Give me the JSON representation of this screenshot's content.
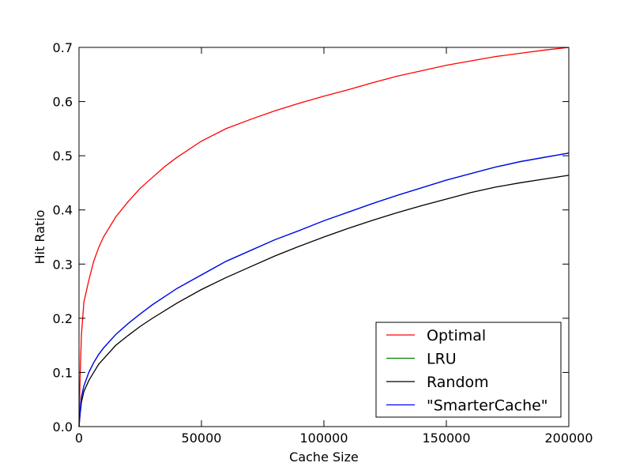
{
  "chart_data": {
    "type": "line",
    "title": "",
    "xlabel": "Cache Size",
    "ylabel": "Hit Ratio",
    "xlim": [
      0,
      200000
    ],
    "ylim": [
      0.0,
      0.7
    ],
    "xticks": [
      0,
      50000,
      100000,
      150000,
      200000
    ],
    "xtick_labels": [
      "0",
      "50000",
      "100000",
      "150000",
      "200000"
    ],
    "yticks": [
      0.0,
      0.1,
      0.2,
      0.3,
      0.4,
      0.5,
      0.6,
      0.7
    ],
    "ytick_labels": [
      "0.0",
      "0.1",
      "0.2",
      "0.3",
      "0.4",
      "0.5",
      "0.6",
      "0.7"
    ],
    "grid": false,
    "legend_position": "lower-right",
    "series": [
      {
        "name": "Optimal",
        "color": "#ff0000",
        "points": [
          [
            0,
            0.0
          ],
          [
            500,
            0.1
          ],
          [
            1000,
            0.17
          ],
          [
            2000,
            0.23
          ],
          [
            4000,
            0.27
          ],
          [
            6000,
            0.305
          ],
          [
            8000,
            0.33
          ],
          [
            10000,
            0.35
          ],
          [
            15000,
            0.387
          ],
          [
            20000,
            0.415
          ],
          [
            25000,
            0.44
          ],
          [
            30000,
            0.46
          ],
          [
            35000,
            0.48
          ],
          [
            40000,
            0.497
          ],
          [
            50000,
            0.527
          ],
          [
            60000,
            0.55
          ],
          [
            70000,
            0.567
          ],
          [
            80000,
            0.583
          ],
          [
            90000,
            0.597
          ],
          [
            100000,
            0.61
          ],
          [
            110000,
            0.622
          ],
          [
            120000,
            0.635
          ],
          [
            130000,
            0.647
          ],
          [
            140000,
            0.657
          ],
          [
            150000,
            0.667
          ],
          [
            160000,
            0.675
          ],
          [
            170000,
            0.683
          ],
          [
            180000,
            0.689
          ],
          [
            190000,
            0.695
          ],
          [
            200000,
            0.7
          ]
        ]
      },
      {
        "name": "LRU",
        "color": "#008000",
        "points": [
          [
            0,
            0.0
          ],
          [
            500,
            0.03
          ],
          [
            1000,
            0.055
          ],
          [
            2000,
            0.075
          ],
          [
            4000,
            0.1
          ],
          [
            6000,
            0.118
          ],
          [
            8000,
            0.133
          ],
          [
            10000,
            0.145
          ],
          [
            15000,
            0.17
          ],
          [
            20000,
            0.19
          ],
          [
            25000,
            0.208
          ],
          [
            30000,
            0.225
          ],
          [
            40000,
            0.255
          ],
          [
            50000,
            0.28
          ],
          [
            60000,
            0.305
          ],
          [
            70000,
            0.325
          ],
          [
            80000,
            0.345
          ],
          [
            90000,
            0.362
          ],
          [
            100000,
            0.38
          ],
          [
            110000,
            0.396
          ],
          [
            120000,
            0.412
          ],
          [
            130000,
            0.427
          ],
          [
            140000,
            0.441
          ],
          [
            150000,
            0.455
          ],
          [
            160000,
            0.467
          ],
          [
            170000,
            0.479
          ],
          [
            180000,
            0.489
          ],
          [
            190000,
            0.497
          ],
          [
            200000,
            0.505
          ]
        ]
      },
      {
        "name": "Random",
        "color": "#000000",
        "points": [
          [
            0,
            0.0
          ],
          [
            500,
            0.025
          ],
          [
            1000,
            0.045
          ],
          [
            2000,
            0.065
          ],
          [
            4000,
            0.085
          ],
          [
            6000,
            0.1
          ],
          [
            8000,
            0.115
          ],
          [
            10000,
            0.125
          ],
          [
            15000,
            0.15
          ],
          [
            20000,
            0.168
          ],
          [
            25000,
            0.185
          ],
          [
            30000,
            0.2
          ],
          [
            40000,
            0.228
          ],
          [
            50000,
            0.253
          ],
          [
            60000,
            0.275
          ],
          [
            70000,
            0.295
          ],
          [
            80000,
            0.315
          ],
          [
            90000,
            0.333
          ],
          [
            100000,
            0.35
          ],
          [
            110000,
            0.366
          ],
          [
            120000,
            0.381
          ],
          [
            130000,
            0.395
          ],
          [
            140000,
            0.408
          ],
          [
            150000,
            0.42
          ],
          [
            160000,
            0.432
          ],
          [
            170000,
            0.442
          ],
          [
            180000,
            0.45
          ],
          [
            190000,
            0.457
          ],
          [
            200000,
            0.464
          ]
        ]
      },
      {
        "name": "\"SmarterCache\"",
        "color": "#0000ff",
        "points": [
          [
            0,
            0.0
          ],
          [
            500,
            0.03
          ],
          [
            1000,
            0.055
          ],
          [
            2000,
            0.075
          ],
          [
            4000,
            0.1
          ],
          [
            6000,
            0.118
          ],
          [
            8000,
            0.133
          ],
          [
            10000,
            0.145
          ],
          [
            15000,
            0.17
          ],
          [
            20000,
            0.19
          ],
          [
            25000,
            0.208
          ],
          [
            30000,
            0.225
          ],
          [
            40000,
            0.255
          ],
          [
            50000,
            0.28
          ],
          [
            60000,
            0.305
          ],
          [
            70000,
            0.325
          ],
          [
            80000,
            0.345
          ],
          [
            90000,
            0.362
          ],
          [
            100000,
            0.38
          ],
          [
            110000,
            0.396
          ],
          [
            120000,
            0.412
          ],
          [
            130000,
            0.427
          ],
          [
            140000,
            0.441
          ],
          [
            150000,
            0.455
          ],
          [
            160000,
            0.467
          ],
          [
            170000,
            0.479
          ],
          [
            180000,
            0.489
          ],
          [
            190000,
            0.497
          ],
          [
            200000,
            0.505
          ]
        ]
      }
    ]
  }
}
